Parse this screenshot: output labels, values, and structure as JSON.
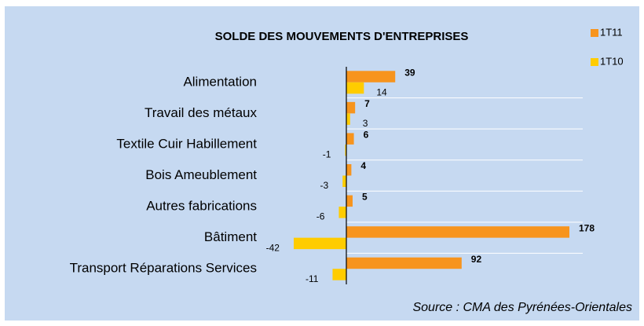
{
  "chart_data": {
    "type": "bar",
    "orientation": "horizontal",
    "title": "SOLDE DES MOUVEMENTS D'ENTREPRISES",
    "categories": [
      "Alimentation",
      "Travail des métaux",
      "Textile Cuir Habillement",
      "Bois Ameublement",
      "Autres fabrications",
      "Bâtiment",
      "Transport Réparations Services"
    ],
    "series": [
      {
        "name": "1T11",
        "color": "#f7941d",
        "values": [
          39,
          7,
          6,
          4,
          5,
          178,
          92
        ]
      },
      {
        "name": "1T10",
        "color": "#ffcc00",
        "values": [
          14,
          3,
          -1,
          -3,
          -6,
          -42,
          -11
        ]
      }
    ],
    "source": "Source : CMA des Pyrénées-Orientales",
    "legend": "top-right"
  }
}
